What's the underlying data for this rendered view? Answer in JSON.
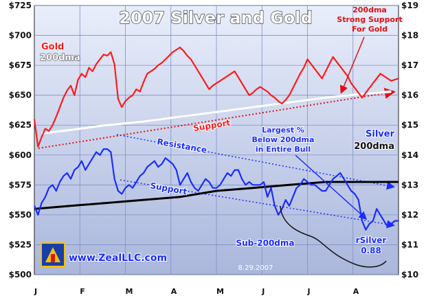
{
  "chart_data": {
    "type": "line",
    "title": "2007 Silver and Gold",
    "x_labels": [
      "J",
      "F",
      "M",
      "A",
      "M",
      "J",
      "J",
      "A"
    ],
    "y_left": {
      "min": 500,
      "max": 725,
      "ticks": [
        "$500",
        "$525",
        "$550",
        "$575",
        "$600",
        "$625",
        "$650",
        "$675",
        "$700",
        "$725"
      ]
    },
    "y_right": {
      "min": 10,
      "max": 19,
      "ticks": [
        "$10",
        "$11",
        "$12",
        "$13",
        "$14",
        "$15",
        "$16",
        "$17",
        "$18",
        "$19"
      ]
    },
    "grid": true,
    "series": [
      {
        "name": "Gold",
        "axis": "left",
        "color": "#ff1a1a",
        "x": [
          0,
          0.01,
          0.02,
          0.03,
          0.04,
          0.05,
          0.06,
          0.07,
          0.08,
          0.09,
          0.1,
          0.11,
          0.12,
          0.13,
          0.14,
          0.15,
          0.16,
          0.17,
          0.18,
          0.19,
          0.2,
          0.21,
          0.22,
          0.23,
          0.24,
          0.25,
          0.26,
          0.27,
          0.28,
          0.29,
          0.3,
          0.31,
          0.32,
          0.33,
          0.34,
          0.35,
          0.36,
          0.37,
          0.38,
          0.39,
          0.4,
          0.41,
          0.42,
          0.43,
          0.44,
          0.45,
          0.46,
          0.47,
          0.48,
          0.49,
          0.5,
          0.51,
          0.52,
          0.53,
          0.54,
          0.55,
          0.56,
          0.57,
          0.58,
          0.59,
          0.6,
          0.61,
          0.62,
          0.63,
          0.64,
          0.65,
          0.66,
          0.67,
          0.68,
          0.69,
          0.7,
          0.71,
          0.72,
          0.73,
          0.74,
          0.75,
          0.76,
          0.77,
          0.78,
          0.79,
          0.8,
          0.81,
          0.82,
          0.83,
          0.84,
          0.85,
          0.86,
          0.87,
          0.88,
          0.89,
          0.9,
          0.91,
          0.92,
          0.93,
          0.94,
          0.95,
          0.96,
          0.97,
          0.98,
          0.99,
          1.0
        ],
        "values": [
          630,
          607,
          615,
          622,
          620,
          625,
          632,
          640,
          648,
          654,
          658,
          650,
          663,
          668,
          665,
          673,
          670,
          676,
          680,
          684,
          683,
          686,
          676,
          647,
          640,
          645,
          648,
          650,
          655,
          653,
          661,
          668,
          670,
          672,
          675,
          677,
          680,
          683,
          686,
          688,
          690,
          687,
          683,
          680,
          675,
          670,
          665,
          660,
          655,
          658,
          660,
          662,
          664,
          666,
          668,
          670,
          665,
          660,
          655,
          650,
          652,
          655,
          657,
          655,
          653,
          650,
          648,
          645,
          643,
          646,
          650,
          656,
          662,
          668,
          673,
          680,
          676,
          672,
          668,
          664,
          670,
          676,
          682,
          678,
          674,
          670,
          666,
          660,
          656,
          652,
          648,
          652,
          656,
          660,
          664,
          668,
          666,
          664,
          662,
          663,
          664
        ]
      },
      {
        "name": "200dma",
        "axis": "left",
        "color": "#ffffff",
        "x": [
          0.02,
          0.1,
          0.2,
          0.3,
          0.4,
          0.5,
          0.6,
          0.7,
          0.8,
          0.9,
          0.98
        ],
        "values": [
          618,
          621,
          625,
          628,
          632,
          636,
          640,
          644,
          648,
          651,
          653
        ]
      },
      {
        "name": "Silver",
        "axis": "right",
        "color": "#1a2cff",
        "x": [
          0,
          0.01,
          0.02,
          0.03,
          0.04,
          0.05,
          0.06,
          0.07,
          0.08,
          0.09,
          0.1,
          0.11,
          0.12,
          0.13,
          0.14,
          0.15,
          0.16,
          0.17,
          0.18,
          0.19,
          0.2,
          0.21,
          0.22,
          0.23,
          0.24,
          0.25,
          0.26,
          0.27,
          0.28,
          0.29,
          0.3,
          0.31,
          0.32,
          0.33,
          0.34,
          0.35,
          0.36,
          0.37,
          0.38,
          0.39,
          0.4,
          0.41,
          0.42,
          0.43,
          0.44,
          0.45,
          0.46,
          0.47,
          0.48,
          0.49,
          0.5,
          0.51,
          0.52,
          0.53,
          0.54,
          0.55,
          0.56,
          0.57,
          0.58,
          0.59,
          0.6,
          0.61,
          0.62,
          0.63,
          0.64,
          0.65,
          0.66,
          0.67,
          0.68,
          0.69,
          0.7,
          0.71,
          0.72,
          0.73,
          0.74,
          0.75,
          0.76,
          0.77,
          0.78,
          0.79,
          0.8,
          0.81,
          0.82,
          0.83,
          0.84,
          0.85,
          0.86,
          0.87,
          0.88,
          0.89,
          0.9,
          0.91,
          0.92,
          0.93,
          0.94,
          0.95,
          0.96,
          0.97,
          0.98,
          0.99,
          1.0
        ],
        "values": [
          12.3,
          12.0,
          12.4,
          12.6,
          12.9,
          13.0,
          12.8,
          13.1,
          13.3,
          13.4,
          13.2,
          13.5,
          13.6,
          13.8,
          13.5,
          13.7,
          13.9,
          14.1,
          14.0,
          14.2,
          14.2,
          14.1,
          13.2,
          12.8,
          12.7,
          12.9,
          13.0,
          12.9,
          13.1,
          13.3,
          13.4,
          13.6,
          13.7,
          13.8,
          13.6,
          13.7,
          13.9,
          13.8,
          13.7,
          13.5,
          13.0,
          13.2,
          13.4,
          13.1,
          12.9,
          12.8,
          13.0,
          13.2,
          13.1,
          12.9,
          12.9,
          13.0,
          13.2,
          13.4,
          13.3,
          13.5,
          13.5,
          13.2,
          13.0,
          13.1,
          13.0,
          13.0,
          13.0,
          13.1,
          12.6,
          12.9,
          12.3,
          12.0,
          12.2,
          12.5,
          12.3,
          12.6,
          12.9,
          13.0,
          13.2,
          13.1,
          13.0,
          13.0,
          12.9,
          12.8,
          12.8,
          13.0,
          13.2,
          13.3,
          13.4,
          13.2,
          13.0,
          12.8,
          12.7,
          12.5,
          11.8,
          11.5,
          11.7,
          11.8,
          12.2,
          12.0,
          11.8,
          11.6,
          11.7,
          11.8,
          11.8
        ]
      },
      {
        "name": "200dma",
        "axis": "right",
        "color": "#000000",
        "x": [
          0,
          0.1,
          0.2,
          0.3,
          0.4,
          0.5,
          0.6,
          0.7,
          0.8,
          0.9,
          1.0
        ],
        "values": [
          12.2,
          12.3,
          12.4,
          12.5,
          12.6,
          12.8,
          12.9,
          13.0,
          13.1,
          13.1,
          13.1
        ]
      }
    ],
    "annotations": {
      "gold_label": "Gold",
      "gold_dma_label": "200dma",
      "silver_label": "Silver",
      "silver_dma_label": "200dma",
      "top_right_note": [
        "200dma",
        "Strong Support",
        "For Gold"
      ],
      "gold_support": "Support",
      "resistance": "Resistance",
      "silver_support": "Support",
      "largest_pct": [
        "Largest %",
        "Below 200dma",
        "in Entire Bull"
      ],
      "sub_200dma": "Sub-200dma",
      "rsilver": [
        "rSilver",
        "0.88"
      ],
      "website": "www.ZealLLC.com",
      "date": "8.29.2007"
    }
  }
}
